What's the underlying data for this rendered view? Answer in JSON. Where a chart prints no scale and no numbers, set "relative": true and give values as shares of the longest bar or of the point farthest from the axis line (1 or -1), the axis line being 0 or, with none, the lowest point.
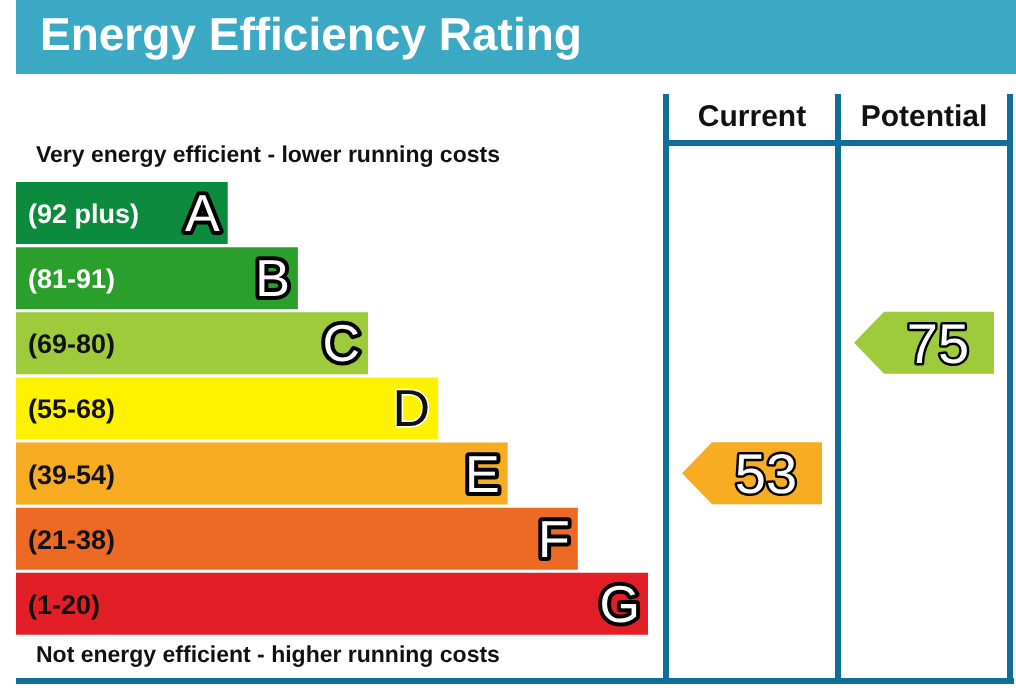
{
  "chart_data": {
    "type": "bar",
    "orientation": "horizontal",
    "relative": true,
    "title": "Energy Efficiency Rating",
    "categories": [
      "(92 plus) A",
      "(81-91) B",
      "(69-80) C",
      "(55-68) D",
      "(39-54) E",
      "(21-38) F",
      "(1-20) G"
    ],
    "values": [
      0.335,
      0.446,
      0.557,
      0.668,
      0.778,
      0.889,
      1
    ],
    "colors": [
      "#0c8a3e",
      "#2b9f2b",
      "#9dcb3c",
      "#fff200",
      "#f7ac22",
      "#ec6a23",
      "#e21f26"
    ],
    "legend": false,
    "annotations": [
      "Very energy efficient - lower running costs",
      "Not energy efficient - higher running costs",
      "Current",
      "Potential",
      "53",
      "75"
    ]
  }
}
